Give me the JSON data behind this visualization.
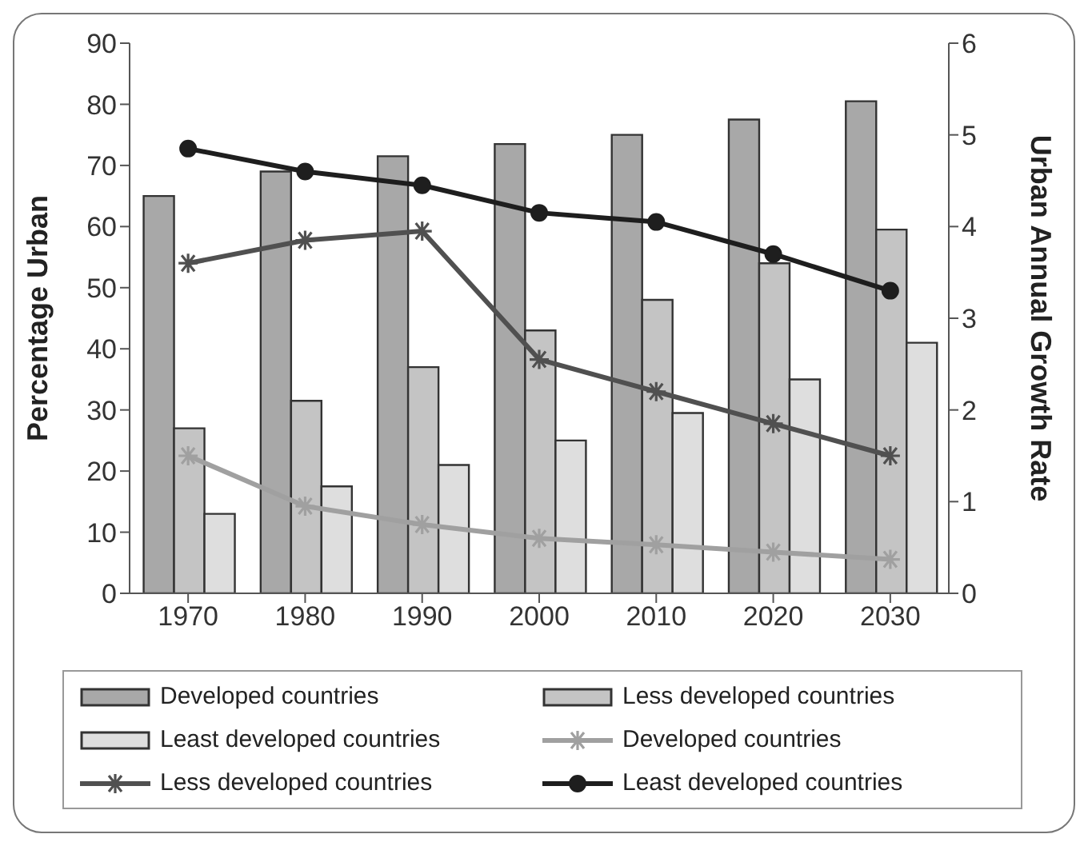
{
  "chart_data": {
    "type": "bar",
    "categories": [
      "1970",
      "1980",
      "1990",
      "2000",
      "2010",
      "2020",
      "2030"
    ],
    "ylabel": "Percentage Urban",
    "y2label": "Urban Annual Growth Rate",
    "ylim": [
      0,
      90
    ],
    "yticks": [
      0,
      10,
      20,
      30,
      40,
      50,
      60,
      70,
      80,
      90
    ],
    "y2lim": [
      0,
      6
    ],
    "y2ticks": [
      0,
      1,
      2,
      3,
      4,
      5,
      6
    ],
    "grid": false,
    "legend": "bottom",
    "series": [
      {
        "name": "Developed countries",
        "color": "#a8a8a8",
        "values": [
          65,
          69,
          71.5,
          73.5,
          75,
          77.5,
          80.5
        ]
      },
      {
        "name": "Less developed countries",
        "color": "#c4c4c4",
        "values": [
          27,
          31.5,
          37,
          43,
          48,
          54,
          59.5
        ]
      },
      {
        "name": "Least developed countries",
        "color": "#dedede",
        "values": [
          13,
          17.5,
          21,
          25,
          29.5,
          35,
          41
        ]
      },
      {
        "name": "Developed countries",
        "type": "line",
        "axis": "y2",
        "marker": "cross",
        "color": "#a0a0a0",
        "values": [
          1.5,
          0.95,
          0.75,
          0.6,
          0.53,
          0.45,
          0.37
        ]
      },
      {
        "name": "Less developed countries",
        "type": "line",
        "axis": "y2",
        "marker": "cross",
        "color": "#505050",
        "values": [
          3.6,
          3.85,
          3.95,
          2.55,
          2.2,
          1.85,
          1.5
        ]
      },
      {
        "name": "Least developed countries",
        "type": "line",
        "axis": "y2",
        "marker": "circle",
        "color": "#1e1e1e",
        "values": [
          4.85,
          4.6,
          4.45,
          4.15,
          4.05,
          3.7,
          3.3
        ]
      }
    ]
  }
}
